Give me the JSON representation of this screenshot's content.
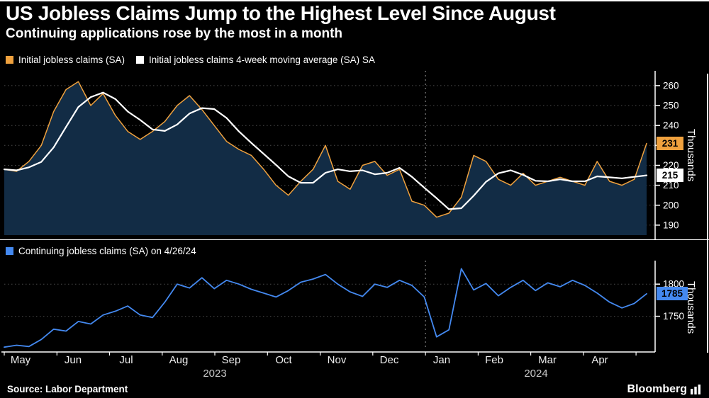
{
  "header": {
    "title": "US Jobless Claims Jump to the Highest Level Since August",
    "subtitle": "Continuing applications rose by the most in a month"
  },
  "legend_top": [
    {
      "label": "Initial jobless claims (SA)",
      "color": "#efa13e"
    },
    {
      "label": "Initial jobless claims 4-week moving average (SA) SA",
      "color": "#ffffff"
    }
  ],
  "legend_bottom": [
    {
      "label": "Continuing jobless claims (SA) on 4/26/24",
      "color": "#4489f0"
    }
  ],
  "axis": {
    "months": [
      "May",
      "Jun",
      "Jul",
      "Aug",
      "Sep",
      "Oct",
      "Nov",
      "Dec",
      "Jan",
      "Feb",
      "Mar",
      "Apr"
    ],
    "years": [
      "2023",
      "2024"
    ]
  },
  "footer": {
    "source": "Source: Labor Department",
    "brand": "Bloomberg"
  },
  "colors": {
    "background": "#000000",
    "area_fill": "#122c45",
    "grid": "#4b4b4b",
    "orange": "#efa13e",
    "white": "#ffffff",
    "blue": "#4489f0"
  },
  "chart_data": [
    {
      "type": "area",
      "title": "Initial jobless claims",
      "ylabel": "Thousands",
      "ylim": [
        185,
        266
      ],
      "yticks": [
        190,
        200,
        210,
        220,
        230,
        240,
        250,
        260
      ],
      "x_range_months": [
        "May 2023",
        "May 2024"
      ],
      "grid": "dotted-horizontal",
      "legend_position": "top-left",
      "end_labels": [
        {
          "value": 231,
          "color": "#efa13e"
        },
        {
          "value": 215,
          "color": "#ffffff"
        }
      ],
      "series": [
        {
          "name": "Initial jobless claims (SA)",
          "color": "#efa13e",
          "fill": "#122c45",
          "width": 1.5,
          "values": [
            218,
            217,
            222,
            230,
            247,
            258,
            262,
            250,
            256,
            245,
            237,
            233,
            237,
            242,
            250,
            255,
            248,
            240,
            232,
            228,
            225,
            218,
            210,
            205,
            212,
            218,
            230,
            212,
            208,
            220,
            222,
            215,
            218,
            202,
            200,
            194,
            196,
            204,
            225,
            222,
            213,
            210,
            216,
            210,
            212,
            214,
            212,
            210,
            222,
            212,
            210,
            213,
            231
          ]
        },
        {
          "name": "Initial jobless claims 4-week moving average (SA)",
          "color": "#ffffff",
          "width": 2.2,
          "values": [
            218,
            217.5,
            219,
            221.75,
            229,
            239.25,
            249.25,
            254.25,
            256.5,
            253.25,
            247,
            242.75,
            238,
            237.25,
            240.5,
            246,
            248.75,
            248.25,
            243.75,
            237,
            231.25,
            225.75,
            220.25,
            214.5,
            211.25,
            211.25,
            216.25,
            218,
            217,
            217.5,
            215.5,
            216.25,
            218.75,
            214.25,
            208.75,
            203.5,
            198,
            198.5,
            204.75,
            211.75,
            216,
            217.5,
            215.25,
            212.25,
            212,
            213,
            212,
            212,
            214.5,
            214,
            213.5,
            214.25,
            215
          ]
        }
      ]
    },
    {
      "type": "line",
      "title": "Continuing jobless claims",
      "ylabel": "Thousands",
      "ylim": [
        1700,
        1830
      ],
      "yticks": [
        1750,
        1800
      ],
      "x_range_months": [
        "May 2023",
        "May 2024"
      ],
      "grid": "dotted-horizontal",
      "end_labels": [
        {
          "value": 1785,
          "color": "#4489f0"
        }
      ],
      "series": [
        {
          "name": "Continuing jobless claims (SA)",
          "color": "#4489f0",
          "width": 1.8,
          "values": [
            1702,
            1705,
            1703,
            1714,
            1730,
            1727,
            1742,
            1738,
            1752,
            1758,
            1766,
            1752,
            1748,
            1772,
            1800,
            1794,
            1810,
            1793,
            1806,
            1800,
            1792,
            1786,
            1780,
            1790,
            1803,
            1808,
            1815,
            1800,
            1788,
            1781,
            1800,
            1795,
            1806,
            1798,
            1780,
            1718,
            1729,
            1824,
            1791,
            1801,
            1782,
            1795,
            1806,
            1790,
            1802,
            1796,
            1806,
            1798,
            1786,
            1772,
            1763,
            1770,
            1785
          ]
        }
      ]
    }
  ]
}
